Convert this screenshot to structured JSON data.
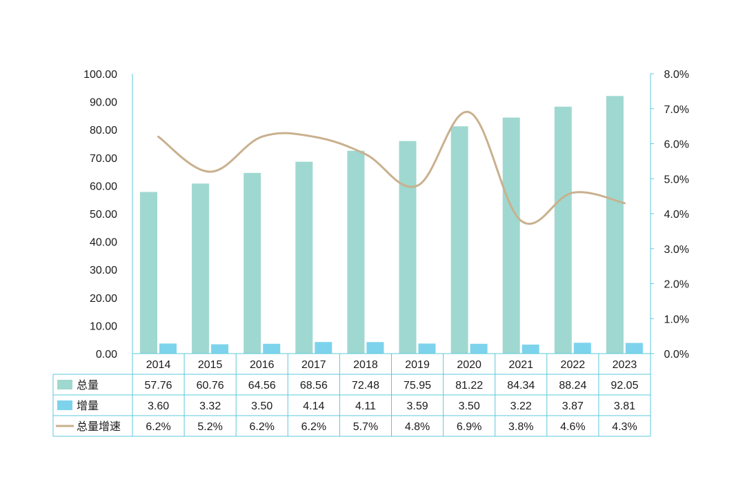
{
  "chart_data": {
    "type": "bar",
    "categories": [
      "2014",
      "2015",
      "2016",
      "2017",
      "2018",
      "2019",
      "2020",
      "2021",
      "2022",
      "2023"
    ],
    "series": [
      {
        "name": "总量",
        "type": "bar",
        "axis": "left",
        "color": "#9fd8d0",
        "values": [
          57.76,
          60.76,
          64.56,
          68.56,
          72.48,
          75.95,
          81.22,
          84.34,
          88.24,
          92.05
        ],
        "labels": [
          "57.76",
          "60.76",
          "64.56",
          "68.56",
          "72.48",
          "75.95",
          "81.22",
          "84.34",
          "88.24",
          "92.05"
        ]
      },
      {
        "name": "增量",
        "type": "bar",
        "axis": "left",
        "color": "#7dd3ec",
        "values": [
          3.6,
          3.32,
          3.5,
          4.14,
          4.11,
          3.59,
          3.5,
          3.22,
          3.87,
          3.81
        ],
        "labels": [
          "3.60",
          "3.32",
          "3.50",
          "4.14",
          "4.11",
          "3.59",
          "3.50",
          "3.22",
          "3.87",
          "3.81"
        ]
      },
      {
        "name": "总量增速",
        "type": "line",
        "axis": "right",
        "color": "#c9b08e",
        "values": [
          6.2,
          5.2,
          6.2,
          6.2,
          5.7,
          4.8,
          6.9,
          3.8,
          4.6,
          4.3
        ],
        "labels": [
          "6.2%",
          "5.2%",
          "6.2%",
          "6.2%",
          "5.7%",
          "4.8%",
          "6.9%",
          "3.8%",
          "4.6%",
          "4.3%"
        ]
      }
    ],
    "y_left": {
      "min": 0,
      "max": 100,
      "ticks": [
        "0.00",
        "10.00",
        "20.00",
        "30.00",
        "40.00",
        "50.00",
        "60.00",
        "70.00",
        "80.00",
        "90.00",
        "100.00"
      ]
    },
    "y_right": {
      "min": 0,
      "max": 8,
      "ticks": [
        "0.0%",
        "1.0%",
        "2.0%",
        "3.0%",
        "4.0%",
        "5.0%",
        "6.0%",
        "7.0%",
        "8.0%"
      ]
    },
    "axis_color": "#5bc8dc",
    "grid": false,
    "legend": "data-table-below"
  }
}
